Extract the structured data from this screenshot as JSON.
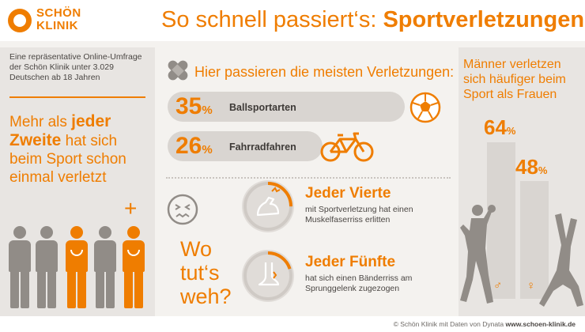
{
  "logo": {
    "line1": "SCHÖN",
    "line2": "KLINIK"
  },
  "title": {
    "prefix": "So schnell passiert‘s:",
    "highlight": "Sportverletzungen"
  },
  "survey": {
    "text": "Eine repräsentative Online-Umfrage der Schön Klinik unter 3.029 Deutschen ab 18 Jahren"
  },
  "majority": {
    "pre": "Mehr als",
    "bold1": "jeder",
    "bold2": "Zweite",
    "post": "hat sich beim Sport schon einmal verletzt"
  },
  "plus_sign": "+",
  "people_icons": [
    "person-grey",
    "person-grey",
    "person-orange",
    "person-grey",
    "person-orange"
  ],
  "where_injuries": {
    "heading": "Hier passieren die meisten Verletzungen:"
  },
  "sports": [
    {
      "percent": "35",
      "unit": "%",
      "label": "Ballsportarten",
      "value": 35,
      "icon": "soccer-ball-icon"
    },
    {
      "percent": "26",
      "unit": "%",
      "label": "Fahrradfahren",
      "value": 26,
      "icon": "bicycle-icon"
    }
  ],
  "where_hurts": {
    "line1": "Wo",
    "line2": "tut‘s",
    "line3": "weh?"
  },
  "stats": [
    {
      "title": "Jeder Vierte",
      "desc": "mit Sportverletzung hat einen Muskelfaserriss erlitten",
      "fraction": 0.25,
      "icon": "muscle-arm-icon"
    },
    {
      "title": "Jeder Fünfte",
      "desc": "hat sich einen Bänderriss am Sprunggelenk zugezogen",
      "fraction": 0.2,
      "icon": "ankle-icon"
    }
  ],
  "gender": {
    "heading": "Männer verletzen sich häufiger beim Sport als Frauen",
    "men": {
      "percent": "64",
      "unit": "%",
      "value": 64,
      "symbol": "♂"
    },
    "women": {
      "percent": "48",
      "unit": "%",
      "value": 48,
      "symbol": "♀"
    }
  },
  "footer": {
    "credit_prefix": "© Schön Klinik mit Daten von Dynata",
    "credit_url": "www.schoen-klinik.de"
  },
  "colors": {
    "accent": "#ef7d00",
    "panel": "#e8e5e2",
    "grey_figure": "#918c87",
    "text": "#4a4643"
  }
}
